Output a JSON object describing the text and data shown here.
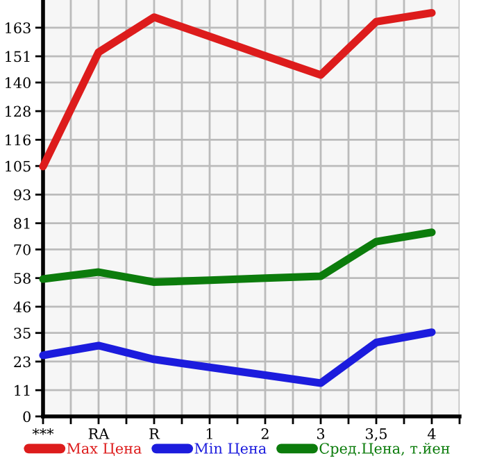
{
  "chart_data": {
    "type": "line",
    "categories": [
      "***",
      "RA",
      "R",
      "1",
      "2",
      "3",
      "3,5",
      "4"
    ],
    "series": [
      {
        "name": "Max Цена",
        "color": "#dd1c1c",
        "values": [
          104.8,
          152.7,
          167.4,
          159.3,
          151.2,
          143.2,
          165.5,
          169.2
        ]
      },
      {
        "name": "Min Цена",
        "color": "#1c1cdd",
        "values": [
          25.6,
          29.7,
          23.9,
          20.6,
          17.3,
          14.0,
          31.0,
          35.3
        ]
      },
      {
        "name": "Сред.Цена, т.йен",
        "color": "#0c7c0c",
        "values": [
          57.6,
          60.5,
          56.3,
          57.1,
          58.0,
          58.8,
          73.3,
          77.2
        ]
      }
    ],
    "ylim": [
      0,
      174.6
    ],
    "yticks": [
      0,
      11,
      23,
      35,
      46,
      58,
      70,
      81,
      93,
      105,
      116,
      128,
      140,
      151,
      163
    ],
    "grid": true,
    "legend": "bottom",
    "marker": "none",
    "line_style": "solid"
  }
}
